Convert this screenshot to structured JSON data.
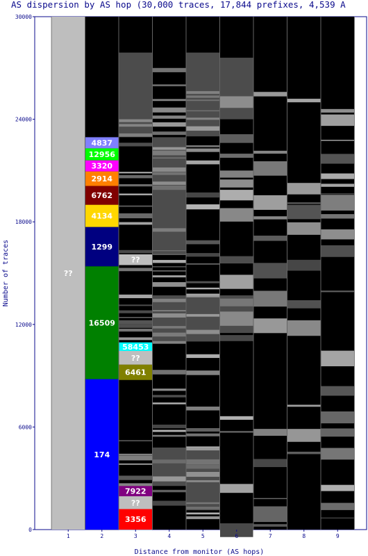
{
  "chart_data": {
    "type": "bar",
    "title": "AS dispersion by AS hop (30,000 traces, 17,844 prefixes, 4,539 A",
    "xlabel": "Distance from monitor (AS hops)",
    "ylabel": "Number of traces",
    "ylim": [
      0,
      30000
    ],
    "yticks": [
      "0",
      "6000",
      "12000",
      "18000",
      "24000",
      "30000"
    ],
    "categories": [
      "1",
      "2",
      "3",
      "4",
      "5",
      "6",
      "7",
      "8",
      "9"
    ],
    "grid": "vertical lines between hops",
    "background": "#000000",
    "labeled_segments": [
      {
        "hop": "1",
        "label": "??",
        "from": 0,
        "to": 30000,
        "color": "#bebebe"
      },
      {
        "hop": "2",
        "label": "174",
        "from": 0,
        "to": 8800,
        "color": "#0000ff"
      },
      {
        "hop": "2",
        "label": "16509",
        "from": 8800,
        "to": 15400,
        "color": "#008000"
      },
      {
        "hop": "2",
        "label": "1299",
        "from": 15400,
        "to": 17700,
        "color": "#000080"
      },
      {
        "hop": "2",
        "label": "4134",
        "from": 17700,
        "to": 19000,
        "color": "#ffd700"
      },
      {
        "hop": "2",
        "label": "6762",
        "from": 19000,
        "to": 20100,
        "color": "#800000"
      },
      {
        "hop": "2",
        "label": "2914",
        "from": 20100,
        "to": 20950,
        "color": "#ff8000"
      },
      {
        "hop": "2",
        "label": "3320",
        "from": 20950,
        "to": 21600,
        "color": "#ff00ff"
      },
      {
        "hop": "2",
        "label": "12956",
        "from": 21600,
        "to": 22300,
        "color": "#00ff00"
      },
      {
        "hop": "2",
        "label": "4837",
        "from": 22300,
        "to": 22950,
        "color": "#8080ff"
      },
      {
        "hop": "3",
        "label": "3356",
        "from": 0,
        "to": 1200,
        "color": "#ff0000"
      },
      {
        "hop": "3",
        "label": "??",
        "from": 1200,
        "to": 1950,
        "color": "#bebebe"
      },
      {
        "hop": "3",
        "label": "7922",
        "from": 1950,
        "to": 2550,
        "color": "#800080"
      },
      {
        "hop": "3",
        "label": "6461",
        "from": 8750,
        "to": 9650,
        "color": "#808000"
      },
      {
        "hop": "3",
        "label": "??",
        "from": 9650,
        "to": 10450,
        "color": "#bebebe"
      },
      {
        "hop": "3",
        "label": "58453",
        "from": 10450,
        "to": 10950,
        "color": "#00ffff"
      },
      {
        "hop": "3",
        "label": "??",
        "from": 15500,
        "to": 16100,
        "color": "#bebebe"
      }
    ]
  }
}
